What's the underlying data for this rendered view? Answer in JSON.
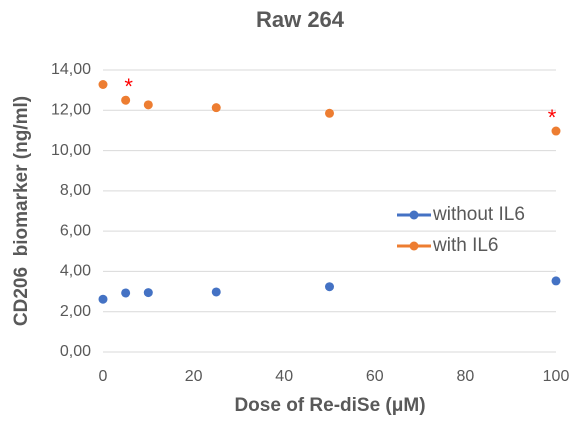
{
  "chart_data": {
    "type": "line",
    "title": "Raw 264",
    "x_label": "Dose of Re-diSe (μM)",
    "y_label": "CD206  biomarker (ng/ml)",
    "x": [
      0,
      5,
      10,
      25,
      50,
      100
    ],
    "series": [
      {
        "name": "without IL6",
        "color": "#4472c4",
        "values": [
          2.62,
          2.93,
          2.95,
          2.98,
          3.24,
          3.53
        ]
      },
      {
        "name": "with IL6",
        "color": "#ed7d31",
        "values": [
          13.28,
          12.5,
          12.27,
          12.13,
          11.85,
          10.97
        ]
      }
    ],
    "annotations": [
      {
        "text": "*",
        "x": 5,
        "color": "#ff0000"
      },
      {
        "text": "*",
        "x": 100,
        "color": "#ff0000"
      }
    ],
    "xlim": [
      0,
      100
    ],
    "xticks": [
      0,
      20,
      40,
      60,
      80,
      100
    ],
    "ylim": [
      0,
      14
    ],
    "yticks": [
      {
        "value": 0,
        "label": "0,00"
      },
      {
        "value": 2,
        "label": "2,00"
      },
      {
        "value": 4,
        "label": "4,00"
      },
      {
        "value": 6,
        "label": "6,00"
      },
      {
        "value": 8,
        "label": "8,00"
      },
      {
        "value": 10,
        "label": "10,00"
      },
      {
        "value": 12,
        "label": "12,00"
      },
      {
        "value": 14,
        "label": "14,00"
      }
    ],
    "grid": true,
    "legend": "right"
  }
}
